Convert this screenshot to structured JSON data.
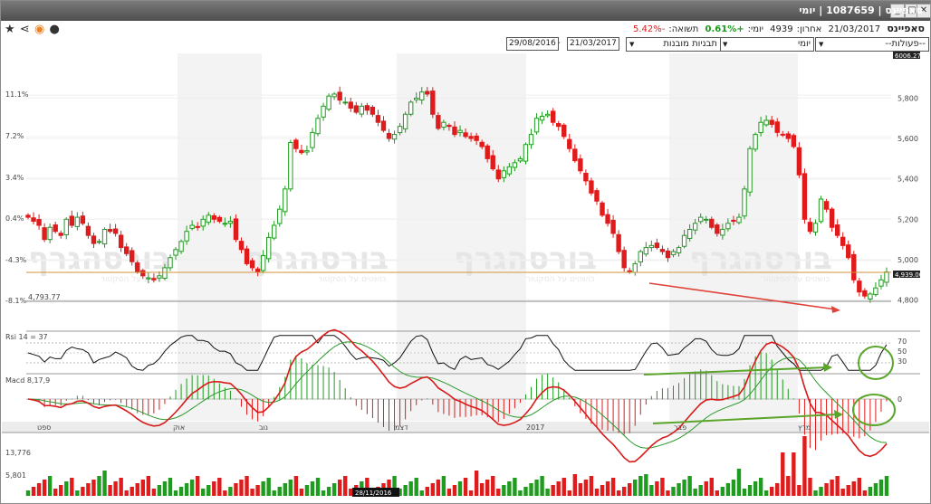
{
  "window": {
    "title": "סאפיינס | 1087659 | יומי",
    "btn_close": "✕",
    "btn_max": "□",
    "btn_min": "_"
  },
  "info": {
    "name": "סאפיינס",
    "date": "21/03/2017",
    "last_label": "אחרון:",
    "last": "4939",
    "day_label": "יומי:",
    "day_change": "+0.61%",
    "yield_label": "תשואה:",
    "yield": "-5.42%"
  },
  "controls": {
    "actions": "--פעולות--",
    "period": "יומי",
    "patterns": "תבניות מובנות",
    "date_to": "21/03/2017",
    "date_from": "29/08/2016",
    "dash": "-"
  },
  "icons": [
    "star-icon",
    "share-icon",
    "target-icon",
    "comment-icon"
  ],
  "colors": {
    "up": "#1f9b1f",
    "down": "#e01b1b",
    "ref_line": "#d2903a",
    "arrow_red": "#e0433a",
    "arrow_green": "#5aa52a"
  },
  "chart_data": {
    "type": "candlestick",
    "price_axis_right": {
      "ticks": [
        4800,
        5000,
        5200,
        5400,
        5600,
        5800
      ],
      "tick_labels": [
        "4,800",
        "5,000",
        "5,200",
        "5,400",
        "5,600",
        "5,800"
      ],
      "top_label": "6006.27",
      "current_label": "4,939.00"
    },
    "percent_axis_left": {
      "tick_labels": [
        "11.1%",
        "7.2%",
        "3.4%",
        "0.4%",
        "-4.3%",
        "-8.1%"
      ]
    },
    "reference_price": 4939,
    "low_line_label": "4,793.77",
    "watermark": "בורסהגרף",
    "watermark_sub": "כושטים על הסקטור",
    "candles_close": [
      5210,
      5190,
      5170,
      5100,
      5160,
      5140,
      5120,
      5200,
      5170,
      5210,
      5180,
      5120,
      5080,
      5090,
      5150,
      5140,
      5130,
      5060,
      5030,
      4990,
      4940,
      4920,
      4910,
      4900,
      4920,
      4960,
      5010,
      5050,
      5090,
      5140,
      5170,
      5160,
      5200,
      5220,
      5200,
      5190,
      5180,
      5190,
      5100,
      5050,
      4980,
      4960,
      4940,
      5020,
      5110,
      5170,
      5250,
      5350,
      5580,
      5550,
      5530,
      5540,
      5630,
      5700,
      5760,
      5810,
      5820,
      5790,
      5780,
      5750,
      5730,
      5760,
      5740,
      5720,
      5680,
      5640,
      5600,
      5620,
      5660,
      5720,
      5780,
      5800,
      5830,
      5820,
      5720,
      5650,
      5680,
      5660,
      5620,
      5640,
      5610,
      5600,
      5590,
      5560,
      5500,
      5450,
      5400,
      5440,
      5460,
      5480,
      5500,
      5570,
      5620,
      5700,
      5710,
      5720,
      5680,
      5660,
      5610,
      5550,
      5490,
      5440,
      5390,
      5330,
      5290,
      5220,
      5180,
      5130,
      5040,
      4960,
      4940,
      4980,
      5040,
      5060,
      5070,
      5060,
      5040,
      5010,
      5040,
      5060,
      5120,
      5150,
      5180,
      5210,
      5200,
      5160,
      5130,
      5150,
      5180,
      5190,
      5210,
      5350,
      5550,
      5620,
      5680,
      5690,
      5670,
      5630,
      5620,
      5600,
      5560,
      5420,
      5200,
      5140,
      5180,
      5300,
      5250,
      5160,
      5120,
      5070,
      5010,
      4900,
      4840,
      4820,
      4830,
      4860,
      4900,
      4939
    ],
    "volume_axis": {
      "tick_labels": [
        "13,776",
        "5,801"
      ]
    },
    "volume_cursor_label": "28/11/2016",
    "rsi": {
      "label": "Rsi 14 = 37",
      "levels": [
        70,
        50,
        30
      ],
      "level_labels": [
        "70",
        "50",
        "30"
      ]
    },
    "macd": {
      "label": "Macd 8,17,9",
      "zero_label": "0"
    },
    "time_axis": [
      "ספט",
      "אוק",
      "נוב",
      "דצמ",
      "2017",
      "פבר",
      "מרץ"
    ]
  }
}
